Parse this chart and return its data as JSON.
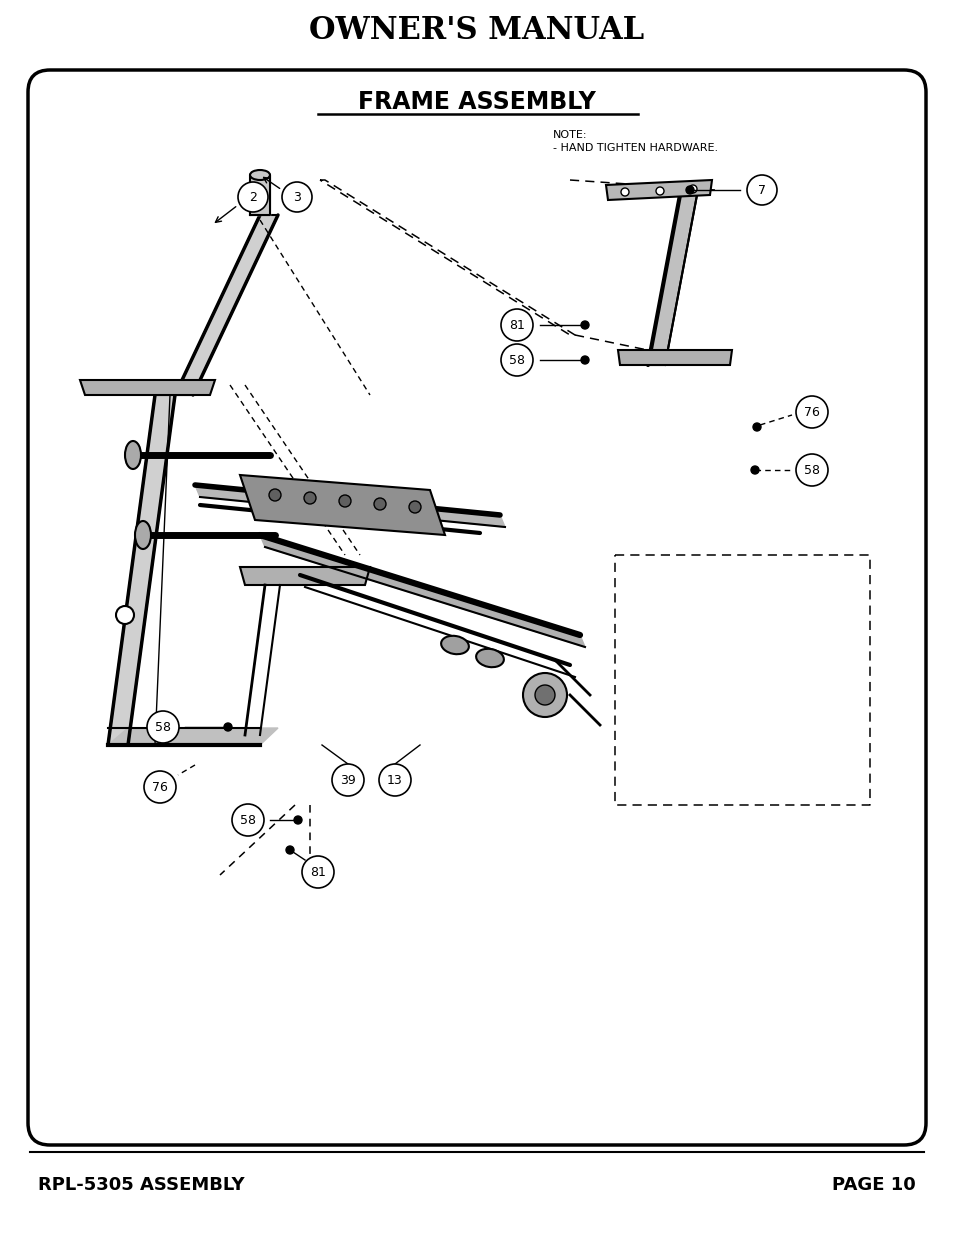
{
  "title": "OWNER'S MANUAL",
  "section_title": "FRAME ASSEMBLY",
  "note_line1": "NOTE:",
  "note_line2": "- HAND TIGHTEN HARDWARE.",
  "footer_left": "RPL-5305 ASSEMBLY",
  "footer_right": "PAGE 10",
  "bg_color": "#ffffff",
  "border_color": "#000000",
  "text_color": "#000000",
  "fig_width": 9.54,
  "fig_height": 12.35
}
